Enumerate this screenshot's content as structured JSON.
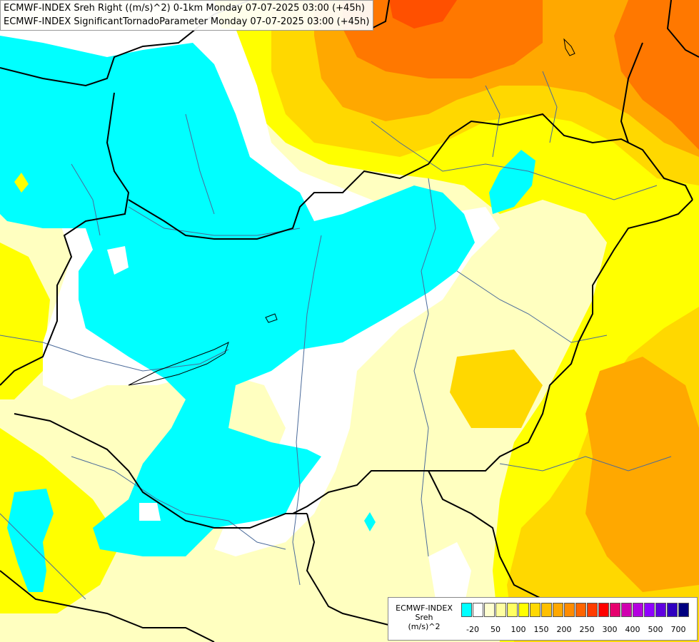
{
  "title": {
    "line1": "ECMWF-INDEX Sreh Right ((m/s)^2) 0-1km Monday 07-07-2025 03:00 (+45h)",
    "line2": "ECMWF-INDEX SignificantTornadoParameter Monday 07-07-2025 03:00 (+45h)"
  },
  "legend": {
    "title_line1": "ECMWF-INDEX",
    "title_line2": "Sreh",
    "title_line3": "(m/s)^2",
    "colors": [
      "#00ffff",
      "#ffffff",
      "#ffffd0",
      "#ffffa0",
      "#ffff60",
      "#ffff00",
      "#ffd800",
      "#ffc000",
      "#ffa800",
      "#ff8c00",
      "#ff6400",
      "#ff3c00",
      "#ff0000",
      "#e6006e",
      "#d000b0",
      "#b400e0",
      "#9000ff",
      "#6000e0",
      "#3000c0",
      "#000080"
    ],
    "labels": [
      "-20",
      "50",
      "100",
      "150",
      "200",
      "250",
      "300",
      "400",
      "500",
      "700"
    ]
  },
  "map_colors": {
    "background": "#ffffc0",
    "cyan": "#00ffff",
    "white": "#ffffff",
    "yellow": "#ffff00",
    "gold": "#ffd800",
    "orange": "#ffa800",
    "deep_orange": "#ff7800",
    "border": "#000000",
    "river": "#4a6a9a"
  }
}
